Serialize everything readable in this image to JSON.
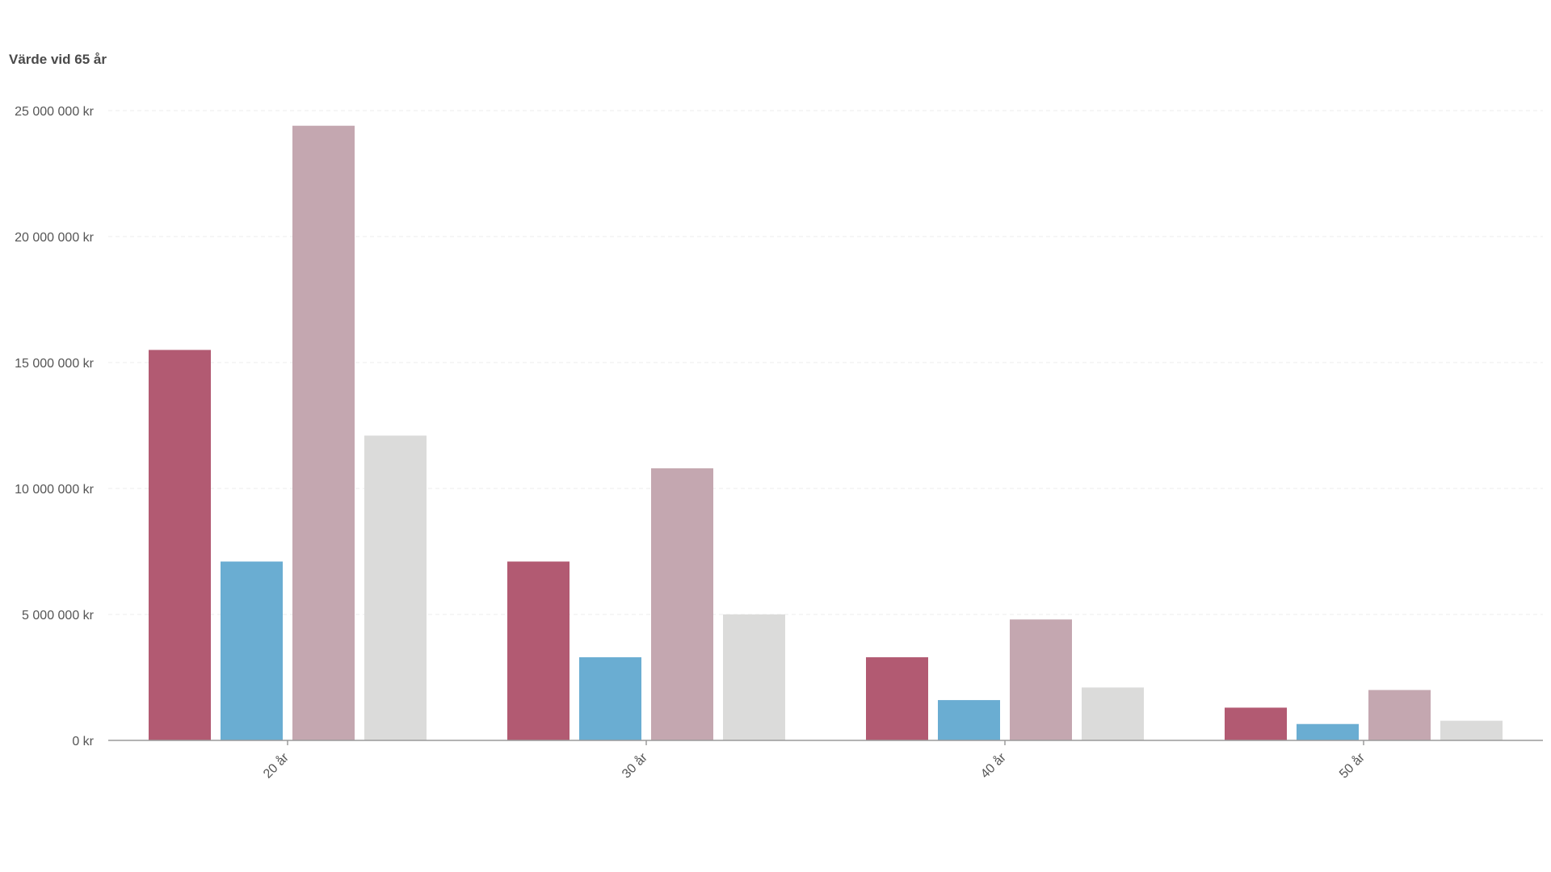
{
  "chart_data": {
    "type": "bar",
    "ylabel": "Värde vid 65 år",
    "categories": [
      "20 år",
      "30 år",
      "40 år",
      "50 år"
    ],
    "series": [
      {
        "color": "#b25a72",
        "values": [
          15500000,
          7100000,
          3300000,
          1300000
        ]
      },
      {
        "color": "#6aadd2",
        "values": [
          7100000,
          3300000,
          1600000,
          650000
        ]
      },
      {
        "color": "#c4a7b0",
        "values": [
          24400000,
          10800000,
          4800000,
          2000000
        ]
      },
      {
        "color": "#dbdbda",
        "values": [
          12100000,
          5000000,
          2100000,
          780000
        ]
      }
    ],
    "ylim": [
      0,
      25000000
    ],
    "yticks": [
      {
        "value": 0,
        "label": "0 kr"
      },
      {
        "value": 5000000,
        "label": "5 000 000 kr"
      },
      {
        "value": 10000000,
        "label": "10 000 000 kr"
      },
      {
        "value": 15000000,
        "label": "15 000 000 kr"
      },
      {
        "value": 20000000,
        "label": "20 000 000 kr"
      },
      {
        "value": 25000000,
        "label": "25 000 000 kr"
      }
    ],
    "grid": true,
    "legend": "none"
  }
}
